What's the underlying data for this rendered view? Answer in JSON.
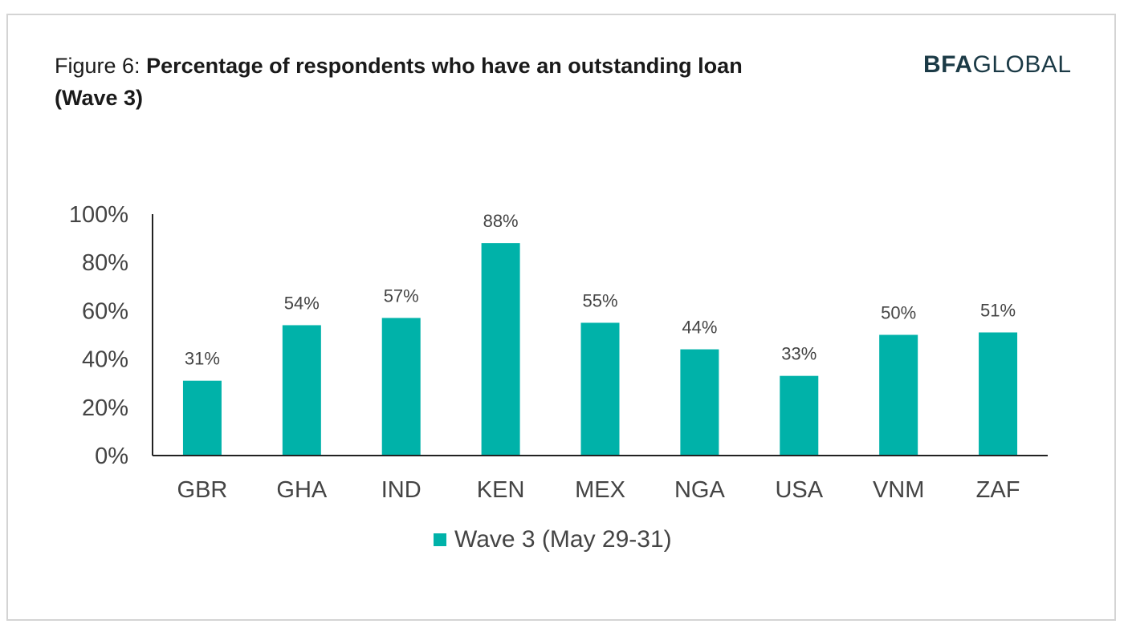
{
  "header": {
    "title_prefix": "Figure 6:",
    "title_bold": "Percentage of respondents who have an outstanding loan (Wave 3)"
  },
  "logo": {
    "part1": "BFA",
    "part2": "GLOBAL"
  },
  "colors": {
    "bar": "#00b2a9",
    "axis": "#222222",
    "text": "#444444",
    "logo": "#1b3a46"
  },
  "chart_data": {
    "type": "bar",
    "title": "Percentage of respondents who have an outstanding loan (Wave 3)",
    "categories": [
      "GBR",
      "GHA",
      "IND",
      "KEN",
      "MEX",
      "NGA",
      "USA",
      "VNM",
      "ZAF"
    ],
    "series": [
      {
        "name": "Wave 3 (May 29-31)",
        "values": [
          31,
          54,
          57,
          88,
          55,
          44,
          33,
          50,
          51
        ],
        "labels": [
          "31%",
          "54%",
          "57%",
          "88%",
          "55%",
          "44%",
          "33%",
          "50%",
          "51%"
        ]
      }
    ],
    "ylim": [
      0,
      100
    ],
    "yticks": [
      0,
      20,
      40,
      60,
      80,
      100
    ],
    "ytick_labels": [
      "0%",
      "20%",
      "40%",
      "60%",
      "80%",
      "100%"
    ],
    "grid": false,
    "legend_position": "bottom"
  }
}
